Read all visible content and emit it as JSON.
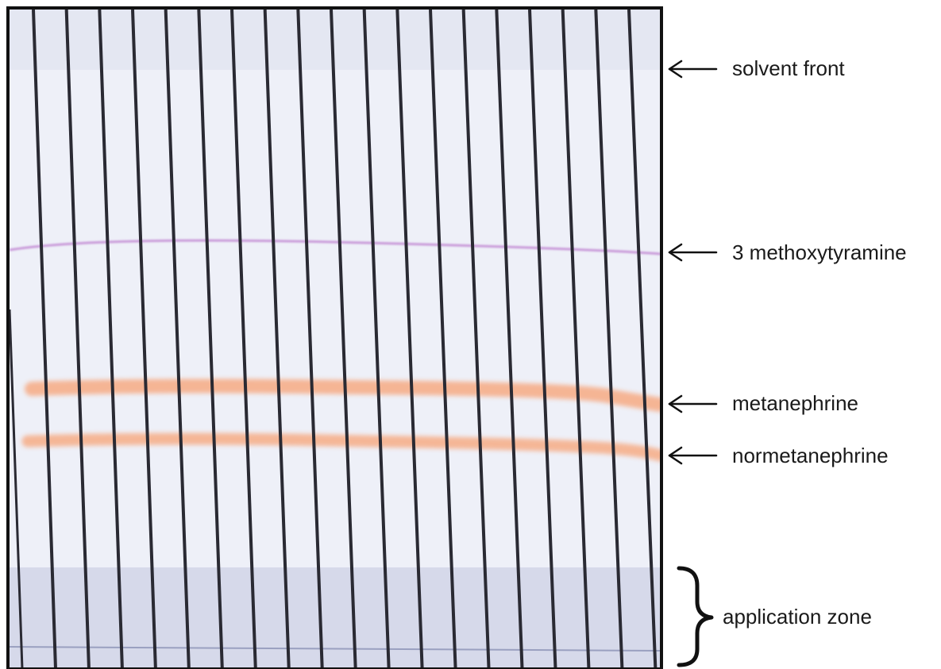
{
  "annotations": {
    "solvent_front": "solvent front",
    "methoxytyramine": "3 methoxytyramine",
    "metanephrine": "metanephrine",
    "normetanephrine": "normetanephrine",
    "application_zone": "application zone"
  },
  "plate": {
    "lane_count": 19,
    "colors": {
      "background": "#eef0f8",
      "upper_shade": "#e4e7f2",
      "application_zone_shade": "#d6d9ea",
      "lane_line": "#2a2a33",
      "methoxytyramine_band": "#c99ad9",
      "metanephrine_band": "#f6b08c",
      "normetanephrine_band": "#f6b08c",
      "border": "#111111"
    }
  }
}
